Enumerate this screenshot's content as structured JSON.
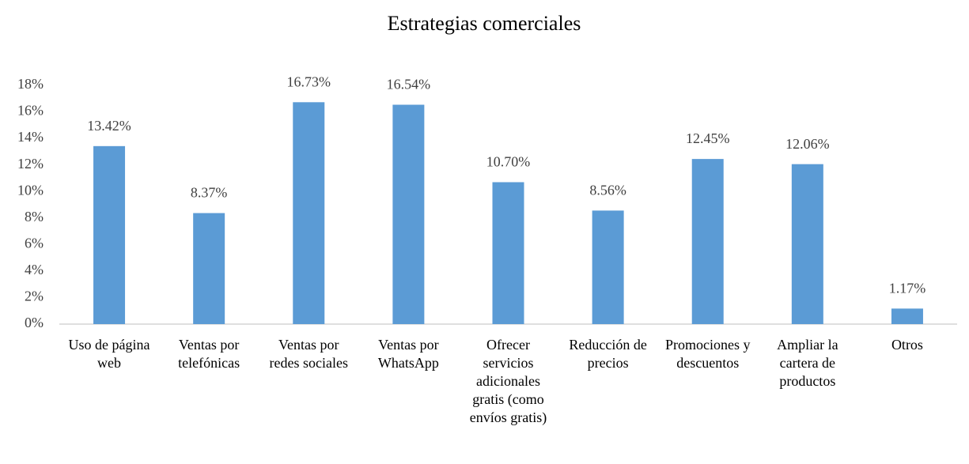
{
  "chart_data": {
    "type": "bar",
    "title": "Estrategias comerciales",
    "categories": [
      "Uso de página web",
      "Ventas por telefónicas",
      "Ventas por redes sociales",
      "Ventas por WhatsApp",
      "Ofrecer servicios adicionales gratis (como envíos gratis)",
      "Reducción de precios",
      "Promociones y descuentos",
      "Ampliar la cartera de productos",
      "Otros"
    ],
    "values": [
      13.42,
      8.37,
      16.73,
      16.54,
      10.7,
      8.56,
      12.45,
      12.06,
      1.17
    ],
    "value_labels": [
      "13.42%",
      "8.37%",
      "16.73%",
      "16.54%",
      "10.70%",
      "8.56%",
      "12.45%",
      "12.06%",
      "1.17%"
    ],
    "color": "#5b9bd5",
    "ylim": [
      0,
      18
    ],
    "yticks": [
      {
        "value": 0,
        "label": "0%"
      },
      {
        "value": 2,
        "label": "2%"
      },
      {
        "value": 4,
        "label": "4%"
      },
      {
        "value": 6,
        "label": "6%"
      },
      {
        "value": 8,
        "label": "8%"
      },
      {
        "value": 10,
        "label": "10%"
      },
      {
        "value": 12,
        "label": "12%"
      },
      {
        "value": 14,
        "label": "14%"
      },
      {
        "value": 16,
        "label": "16%"
      },
      {
        "value": 18,
        "label": "18%"
      }
    ],
    "grid": false
  }
}
